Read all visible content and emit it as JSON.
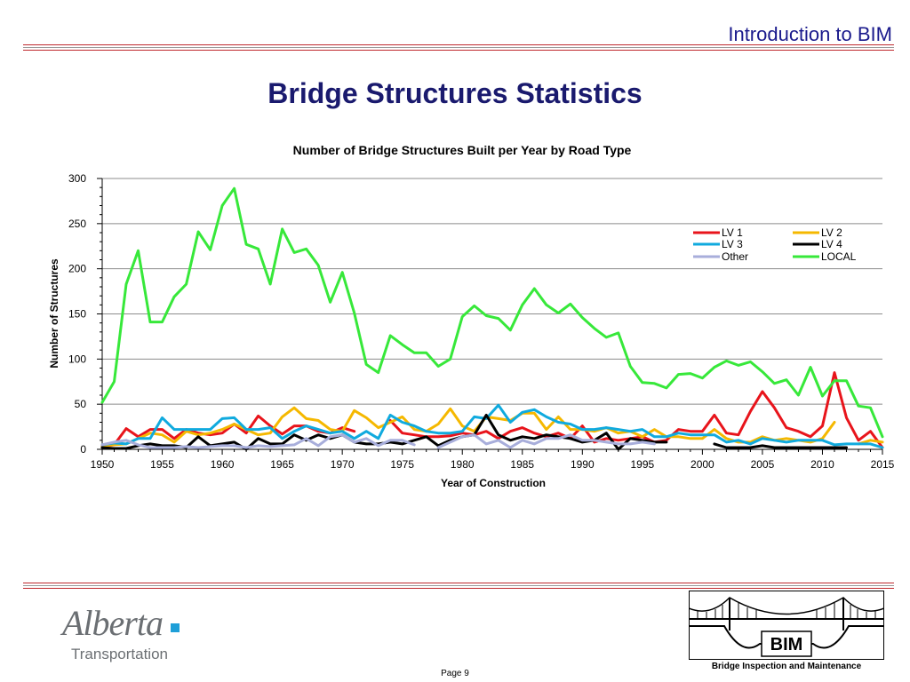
{
  "header": {
    "title": "Introduction to BIM"
  },
  "page": {
    "title": "Bridge Structures Statistics",
    "page_label": "Page 9"
  },
  "branding": {
    "org_name": "Alberta",
    "org_subtitle": "Transportation",
    "badge_text": "BIM",
    "badge_caption": "Bridge Inspection and Maintenance"
  },
  "colors": {
    "accent_rule": "#c0282d",
    "title_navy": "#1a1a6e"
  },
  "chart_data": {
    "type": "line",
    "title": "Number of Bridge Structures Built per Year by Road Type",
    "xlabel": "Year of Construction",
    "ylabel": "Number of Structures",
    "xlim": [
      1950,
      2015
    ],
    "ylim": [
      0,
      300
    ],
    "x_ticks": [
      1950,
      1955,
      1960,
      1965,
      1970,
      1975,
      1980,
      1985,
      1990,
      1995,
      2000,
      2005,
      2010,
      2015
    ],
    "y_ticks": [
      0,
      50,
      100,
      150,
      200,
      250,
      300
    ],
    "grid": true,
    "legend_position": "right",
    "x": [
      1950,
      1951,
      1952,
      1953,
      1954,
      1955,
      1956,
      1957,
      1958,
      1959,
      1960,
      1961,
      1962,
      1963,
      1964,
      1965,
      1966,
      1967,
      1968,
      1969,
      1970,
      1971,
      1972,
      1973,
      1974,
      1975,
      1976,
      1977,
      1978,
      1979,
      1980,
      1981,
      1982,
      1983,
      1984,
      1985,
      1986,
      1987,
      1988,
      1989,
      1990,
      1991,
      1992,
      1993,
      1994,
      1995,
      1996,
      1997,
      1998,
      1999,
      2000,
      2001,
      2002,
      2003,
      2004,
      2005,
      2006,
      2007,
      2008,
      2009,
      2010,
      2011,
      2012,
      2013,
      2014,
      2015
    ],
    "series": [
      {
        "name": "LV 1",
        "color": "#e8141b",
        "values": [
          3,
          5,
          23,
          14,
          22,
          22,
          12,
          22,
          18,
          16,
          18,
          28,
          18,
          37,
          26,
          17,
          26,
          26,
          20,
          18,
          24,
          20,
          null,
          null,
          32,
          18,
          16,
          14,
          14,
          15,
          18,
          16,
          20,
          12,
          20,
          24,
          18,
          14,
          18,
          12,
          26,
          8,
          12,
          10,
          12,
          14,
          8,
          10,
          22,
          20,
          20,
          38,
          18,
          16,
          42,
          64,
          46,
          24,
          20,
          14,
          26,
          85,
          35,
          10,
          20,
          2
        ]
      },
      {
        "name": "LV 2",
        "color": "#f5b800",
        "values": [
          4,
          5,
          6,
          12,
          18,
          16,
          8,
          20,
          16,
          18,
          22,
          28,
          22,
          16,
          18,
          36,
          46,
          34,
          32,
          22,
          20,
          43,
          35,
          24,
          30,
          36,
          22,
          20,
          28,
          45,
          26,
          20,
          36,
          34,
          32,
          40,
          40,
          22,
          36,
          22,
          22,
          20,
          24,
          18,
          20,
          14,
          22,
          14,
          14,
          12,
          12,
          22,
          12,
          8,
          8,
          14,
          10,
          12,
          10,
          8,
          12,
          30,
          null,
          6,
          10,
          8
        ]
      },
      {
        "name": "LV 3",
        "color": "#10aade",
        "values": [
          5,
          7,
          6,
          12,
          12,
          35,
          22,
          22,
          22,
          22,
          34,
          35,
          22,
          22,
          24,
          12,
          20,
          26,
          22,
          18,
          20,
          12,
          20,
          12,
          38,
          30,
          26,
          20,
          18,
          18,
          20,
          36,
          34,
          49,
          30,
          41,
          44,
          36,
          30,
          28,
          22,
          22,
          24,
          22,
          20,
          22,
          14,
          14,
          18,
          16,
          16,
          16,
          8,
          10,
          6,
          12,
          10,
          8,
          10,
          10,
          10,
          5,
          6,
          6,
          6,
          2
        ]
      },
      {
        "name": "LV 4",
        "color": "#000000",
        "values": [
          2,
          1,
          1,
          4,
          6,
          4,
          4,
          2,
          14,
          4,
          6,
          8,
          0,
          12,
          6,
          6,
          16,
          10,
          16,
          12,
          16,
          8,
          6,
          6,
          8,
          6,
          10,
          14,
          4,
          10,
          14,
          16,
          38,
          16,
          10,
          14,
          12,
          16,
          14,
          12,
          8,
          10,
          18,
          0,
          12,
          10,
          8,
          8,
          null,
          6,
          null,
          6,
          2,
          2,
          2,
          4,
          2,
          2,
          2,
          2,
          2,
          2,
          2,
          null,
          2,
          null
        ]
      },
      {
        "name": "Other",
        "color": "#a8aedb",
        "values": [
          5,
          8,
          10,
          5,
          2,
          2,
          2,
          3,
          2,
          3,
          4,
          4,
          2,
          4,
          3,
          4,
          5,
          12,
          4,
          14,
          16,
          8,
          12,
          4,
          10,
          10,
          5,
          null,
          2,
          8,
          14,
          16,
          6,
          10,
          2,
          10,
          6,
          12,
          12,
          16,
          10,
          10,
          8,
          6,
          6,
          8,
          6,
          null,
          null,
          null,
          null,
          2,
          null,
          null,
          null,
          null,
          null,
          null,
          null,
          null,
          null,
          null,
          null,
          null,
          null,
          null
        ]
      },
      {
        "name": "LOCAL",
        "color": "#37e83a",
        "values": [
          52,
          75,
          183,
          220,
          141,
          141,
          169,
          183,
          241,
          221,
          270,
          289,
          227,
          222,
          183,
          244,
          218,
          222,
          204,
          163,
          196,
          151,
          94,
          85,
          126,
          116,
          107,
          107,
          92,
          100,
          147,
          159,
          148,
          145,
          132,
          160,
          178,
          160,
          151,
          161,
          146,
          134,
          124,
          129,
          92,
          74,
          73,
          68,
          83,
          84,
          79,
          91,
          98,
          93,
          97,
          86,
          73,
          77,
          60,
          91,
          59,
          76,
          76,
          48,
          46,
          14
        ]
      }
    ]
  }
}
